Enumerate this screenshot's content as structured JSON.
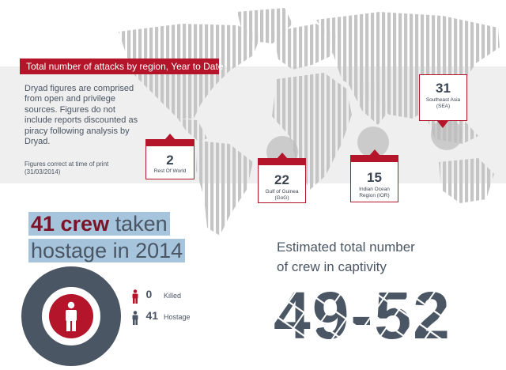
{
  "header": {
    "title": "Total number of attacks by region, Year to Date"
  },
  "intro": {
    "text": "Dryad figures are comprised from open and privilege sources. Figures do not include reports discounted as piracy following analysis by Dryad.",
    "note": "Figures correct at time of print (31/03/2014)"
  },
  "regions": [
    {
      "value": "2",
      "label": "Rest Of World"
    },
    {
      "value": "22",
      "label_line1": "Gulf of Guinea",
      "label_line2": "(GoG)"
    },
    {
      "value": "15",
      "label_line1": "Indian Ocean",
      "label_line2": "Region (IOR)"
    },
    {
      "value": "31",
      "label_line1": "Southeast Asia",
      "label_line2": "(SEA)"
    }
  ],
  "hostage": {
    "title_highlight": "41 crew",
    "title_rest": " taken",
    "title_line2": "hostage in 2014",
    "killed_value": "0",
    "killed_label": "Killed",
    "hostage_value": "41",
    "hostage_label": "Hostage",
    "killed_count": 0,
    "hostage_count": 41
  },
  "captivity": {
    "title_line1": "Estimated total number",
    "title_line2": "of crew in captivity",
    "range": "49-52"
  },
  "colors": {
    "accent": "#b5152b",
    "text": "#4a5663",
    "highlight": "#a7c4dd",
    "stripe": "#c5c5c5"
  }
}
